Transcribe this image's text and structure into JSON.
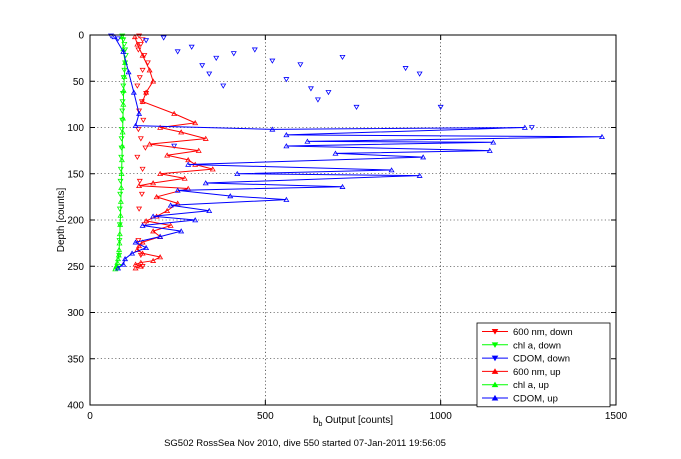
{
  "chart_data": {
    "type": "line",
    "title": "",
    "xlabel": {
      "prefix": "b",
      "sub": "b",
      "suffix": " Output [counts]"
    },
    "ylabel": "Depth [counts]",
    "caption": "SG502 RossSea Nov 2010, dive 550 started 07-Jan-2011 19:56:05",
    "xlim": [
      0,
      1500
    ],
    "ylim": [
      0,
      400
    ],
    "y_reversed": true,
    "grid": true,
    "legend_position": "bottom-right",
    "x_ticks": [
      "0",
      "500",
      "1000",
      "1500"
    ],
    "y_ticks": [
      "0",
      "50",
      "100",
      "150",
      "200",
      "250",
      "300",
      "350",
      "400"
    ],
    "legend": [
      "600 nm, down",
      "chl a, down",
      "CDOM, down",
      "600 nm, up",
      "chl a, up",
      "CDOM, up"
    ],
    "series": [
      {
        "name": "600 nm, down",
        "color": "#ff0000",
        "marker": "triangle-down",
        "style": "scatter",
        "x": [
          140,
          150,
          145,
          138,
          155,
          165,
          150,
          142,
          135,
          160,
          148,
          140,
          152,
          138,
          145,
          158,
          135,
          150,
          142,
          148,
          140,
          155,
          138,
          145,
          150
        ],
        "y": [
          1,
          5,
          10,
          16,
          22,
          30,
          38,
          46,
          55,
          63,
          72,
          82,
          92,
          102,
          112,
          122,
          132,
          145,
          158,
          172,
          188,
          205,
          222,
          238,
          250
        ]
      },
      {
        "name": "chl a, down",
        "color": "#00ff00",
        "marker": "triangle-down",
        "style": "scatter",
        "x": [
          92,
          95,
          98,
          100,
          102,
          100,
          98,
          96,
          95,
          94,
          93,
          92,
          92,
          91,
          90,
          90,
          89,
          88,
          87,
          86,
          85,
          85,
          84,
          83,
          82
        ],
        "y": [
          1,
          5,
          10,
          16,
          22,
          30,
          38,
          46,
          55,
          63,
          72,
          82,
          92,
          102,
          112,
          122,
          132,
          145,
          158,
          172,
          188,
          205,
          222,
          238,
          250
        ]
      },
      {
        "name": "CDOM, down",
        "color": "#0000ff",
        "marker": "triangle-down",
        "style": "scatter",
        "x": [
          60,
          80,
          160,
          210,
          250,
          290,
          320,
          340,
          360,
          380,
          410,
          470,
          520,
          560,
          600,
          630,
          650,
          680,
          720,
          760,
          900,
          940,
          1000,
          1260,
          240
        ],
        "y": [
          1,
          4,
          6,
          3,
          18,
          13,
          33,
          42,
          25,
          55,
          20,
          16,
          28,
          48,
          32,
          58,
          70,
          62,
          24,
          78,
          36,
          42,
          78,
          100,
          120
        ]
      },
      {
        "name": "600 nm, up",
        "color": "#ff0000",
        "marker": "triangle-up",
        "style": "line",
        "x": [
          128,
          135,
          150,
          170,
          180,
          160,
          150,
          240,
          300,
          200,
          260,
          330,
          170,
          310,
          220,
          280,
          300,
          350,
          200,
          270,
          180,
          140,
          280,
          190,
          250,
          220,
          190,
          160,
          230,
          180,
          200,
          150,
          140,
          135,
          150,
          200,
          180,
          145,
          130,
          145,
          130
        ],
        "y": [
          2,
          10,
          22,
          38,
          50,
          62,
          72,
          85,
          95,
          100,
          105,
          112,
          118,
          125,
          130,
          135,
          140,
          145,
          150,
          155,
          160,
          163,
          166,
          175,
          182,
          190,
          196,
          201,
          206,
          212,
          218,
          224,
          228,
          232,
          236,
          240,
          244,
          246,
          248,
          250,
          252
        ]
      },
      {
        "name": "chl a, up",
        "color": "#00ff00",
        "marker": "triangle-up",
        "style": "line",
        "x": [
          92,
          95,
          100,
          98,
          96,
          95,
          94,
          93,
          92,
          91,
          90,
          89,
          88,
          87,
          86,
          85,
          84,
          83,
          82,
          80,
          78,
          76,
          74,
          72
        ],
        "y": [
          2,
          15,
          30,
          45,
          60,
          75,
          90,
          105,
          120,
          135,
          150,
          165,
          180,
          195,
          205,
          215,
          225,
          232,
          238,
          242,
          246,
          249,
          251,
          253
        ]
      },
      {
        "name": "CDOM, up",
        "color": "#0000ff",
        "marker": "triangle-up",
        "style": "line",
        "x": [
          70,
          95,
          110,
          125,
          140,
          130,
          520,
          1240,
          560,
          1460,
          620,
          1150,
          560,
          1140,
          700,
          950,
          280,
          860,
          420,
          940,
          330,
          720,
          250,
          400,
          560,
          230,
          340,
          180,
          300,
          150,
          260,
          200,
          130,
          160,
          120,
          100,
          95,
          80
        ],
        "y": [
          2,
          18,
          40,
          62,
          85,
          98,
          102,
          100,
          108,
          110,
          115,
          116,
          120,
          125,
          128,
          132,
          140,
          146,
          150,
          152,
          160,
          164,
          168,
          174,
          178,
          184,
          190,
          196,
          200,
          206,
          212,
          218,
          224,
          230,
          236,
          242,
          248,
          252
        ]
      }
    ]
  }
}
